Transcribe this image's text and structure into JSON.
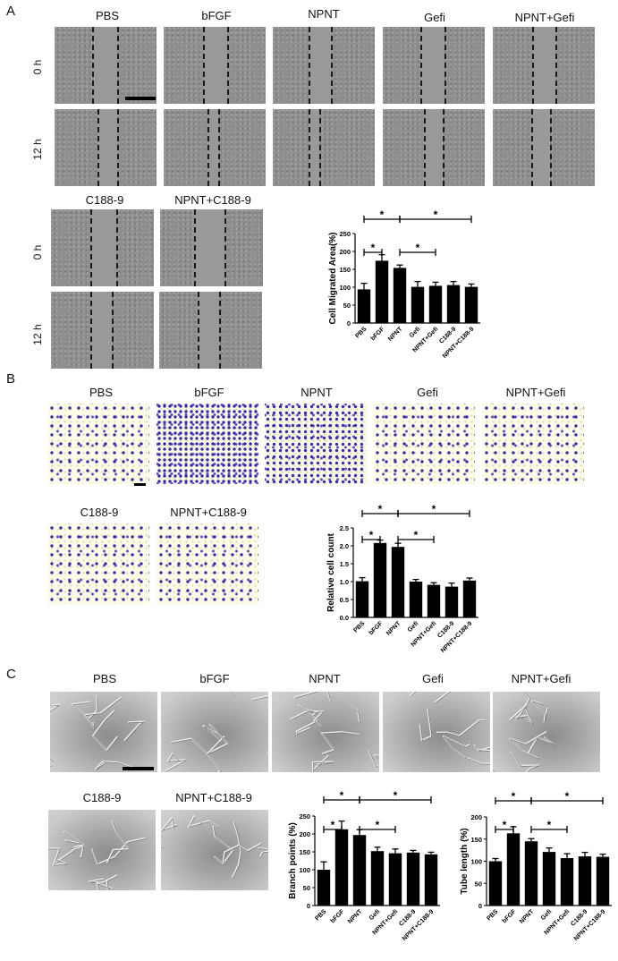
{
  "figure": {
    "panels": {
      "A": {
        "letter": "A",
        "columns_top": [
          "PBS",
          "bFGF",
          "NPNT",
          "Gefi",
          "NPNT+Gefi"
        ],
        "columns_bottom": [
          "C188-9",
          "NPNT+C188-9"
        ],
        "rows": [
          "0 h",
          "12 h"
        ]
      },
      "B": {
        "letter": "B",
        "columns_top": [
          "PBS",
          "bFGF",
          "NPNT",
          "Gefi",
          "NPNT+Gefi"
        ],
        "columns_bottom": [
          "C188-9",
          "NPNT+C188-9"
        ]
      },
      "C": {
        "letter": "C",
        "columns_top": [
          "PBS",
          "bFGF",
          "NPNT",
          "Gefi",
          "NPNT+Gefi"
        ],
        "columns_bottom": [
          "C188-9",
          "NPNT+C188-9"
        ]
      }
    },
    "significance_marker": "*",
    "bar_color": "#000000"
  },
  "chart_data": [
    {
      "id": "migration",
      "panel": "A",
      "type": "bar",
      "categories": [
        "PBS",
        "bFGF",
        "NPNT",
        "Gefi",
        "NPNT+Gefi",
        "C188-9",
        "NPNT+C188-9"
      ],
      "values": [
        94,
        174,
        154,
        101,
        104,
        106,
        101
      ],
      "errors": [
        17,
        17,
        8,
        15,
        10,
        10,
        8
      ],
      "title": "",
      "xlabel": "",
      "ylabel": "Cell Migrated Area(%)",
      "ylim": [
        0,
        250
      ],
      "yticks": [
        0,
        50,
        100,
        150,
        200,
        250
      ],
      "grid": false,
      "significance": [
        {
          "from": "PBS",
          "to": "bFGF",
          "label": "*",
          "level": 1
        },
        {
          "from": "NPNT",
          "to": "NPNT+Gefi",
          "label": "*",
          "level": 1
        },
        {
          "from": "PBS",
          "to": "NPNT",
          "label": "*",
          "level": 2
        },
        {
          "from": "NPNT",
          "to": "NPNT+C188-9",
          "label": "*",
          "level": 2
        }
      ]
    },
    {
      "id": "transwell",
      "panel": "B",
      "type": "bar",
      "categories": [
        "PBS",
        "bFGF",
        "NPNT",
        "Gefi",
        "NPNT+Gefi",
        "C188-9",
        "NPNT+C188-9"
      ],
      "values": [
        1.01,
        2.08,
        1.97,
        1.0,
        0.91,
        0.86,
        1.03
      ],
      "errors": [
        0.1,
        0.08,
        0.1,
        0.06,
        0.06,
        0.1,
        0.07
      ],
      "title": "",
      "xlabel": "",
      "ylabel": "Relative cell count",
      "ylim": [
        0,
        2.5
      ],
      "yticks": [
        0.0,
        0.5,
        1.0,
        1.5,
        2.0,
        2.5
      ],
      "grid": false,
      "significance": [
        {
          "from": "PBS",
          "to": "bFGF",
          "label": "*",
          "level": 1
        },
        {
          "from": "NPNT",
          "to": "NPNT+Gefi",
          "label": "*",
          "level": 1
        },
        {
          "from": "PBS",
          "to": "NPNT",
          "label": "*",
          "level": 2
        },
        {
          "from": "NPNT",
          "to": "NPNT+C188-9",
          "label": "*",
          "level": 2
        }
      ]
    },
    {
      "id": "branch_points",
      "panel": "C",
      "type": "bar",
      "categories": [
        "PBS",
        "bFGF",
        "NPNT",
        "Gefi",
        "NPNT+Gefi",
        "C188-9",
        "NPNT+C188-9"
      ],
      "values": [
        100,
        213,
        197,
        152,
        146,
        148,
        143
      ],
      "errors": [
        22,
        23,
        15,
        11,
        12,
        6,
        6
      ],
      "title": "",
      "xlabel": "",
      "ylabel": "Branch points (%)",
      "ylim": [
        0,
        250
      ],
      "yticks": [
        0,
        50,
        100,
        150,
        200,
        250
      ],
      "grid": false,
      "significance": [
        {
          "from": "PBS",
          "to": "bFGF",
          "label": "*",
          "level": 1
        },
        {
          "from": "NPNT",
          "to": "NPNT+Gefi",
          "label": "*",
          "level": 1
        },
        {
          "from": "PBS",
          "to": "NPNT",
          "label": "*",
          "level": 2
        },
        {
          "from": "NPNT",
          "to": "NPNT+C188-9",
          "label": "*",
          "level": 2
        }
      ]
    },
    {
      "id": "tube_length",
      "panel": "C",
      "type": "bar",
      "categories": [
        "PBS",
        "bFGF",
        "NPNT",
        "Gefi",
        "NPNT+Gefi",
        "C188-9",
        "NPNT+C188-9"
      ],
      "values": [
        100,
        163,
        145,
        121,
        107,
        111,
        110
      ],
      "errors": [
        6,
        15,
        6,
        9,
        10,
        9,
        6
      ],
      "title": "",
      "xlabel": "",
      "ylabel": "Tube length (%)",
      "ylim": [
        0,
        200
      ],
      "yticks": [
        0,
        50,
        100,
        150,
        200
      ],
      "grid": false,
      "significance": [
        {
          "from": "PBS",
          "to": "bFGF",
          "label": "*",
          "level": 1
        },
        {
          "from": "NPNT",
          "to": "NPNT+Gefi",
          "label": "*",
          "level": 1
        },
        {
          "from": "PBS",
          "to": "NPNT",
          "label": "*",
          "level": 2
        },
        {
          "from": "NPNT",
          "to": "NPNT+C188-9",
          "label": "*",
          "level": 2
        }
      ]
    }
  ]
}
